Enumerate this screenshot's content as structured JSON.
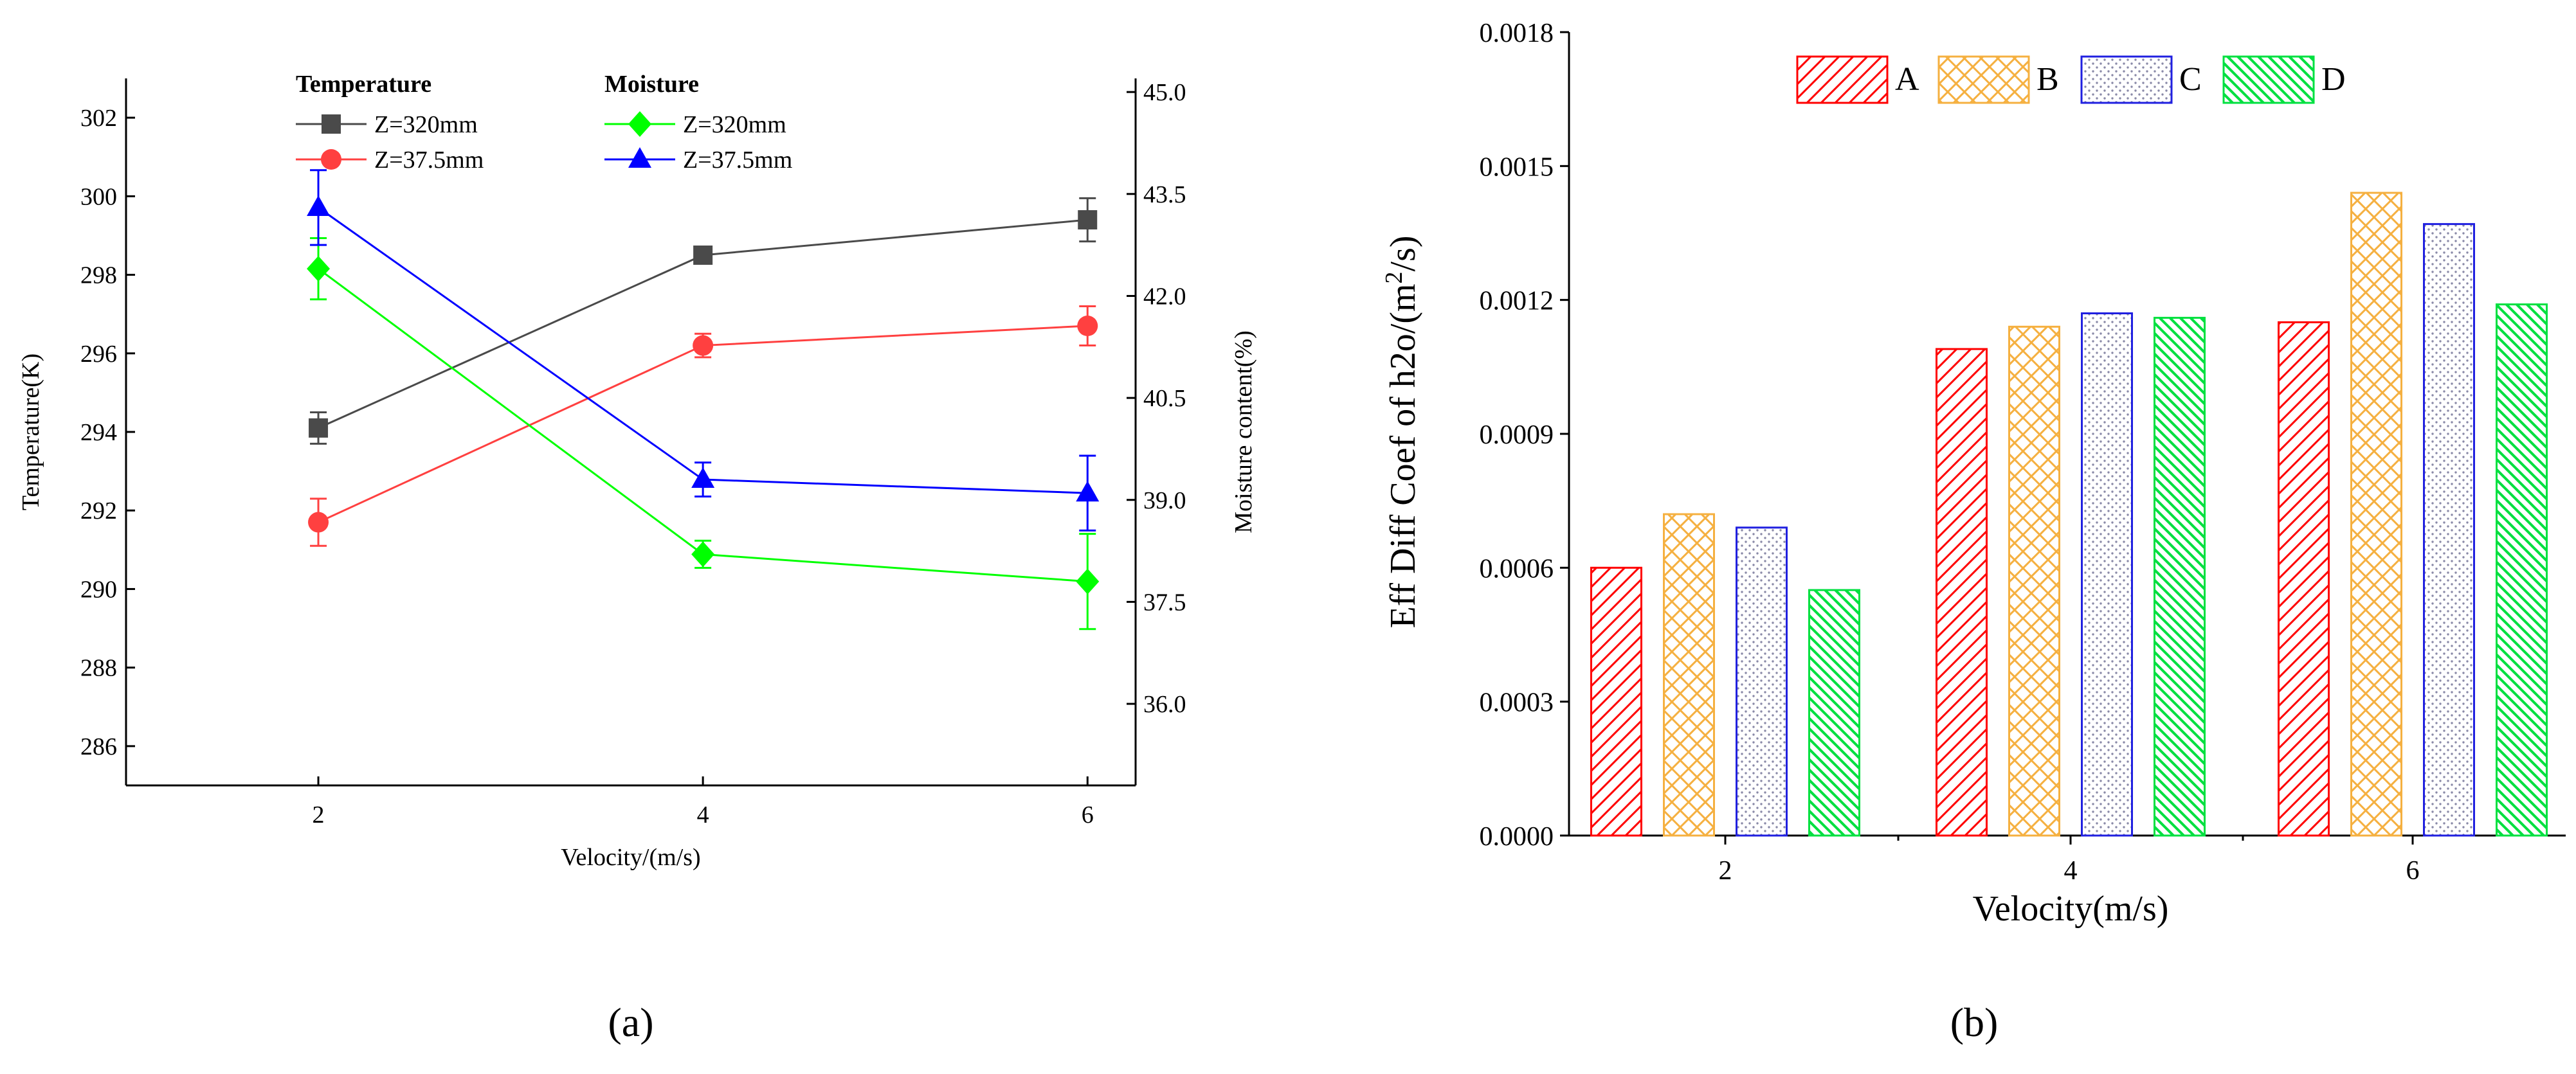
{
  "colors": {
    "black": "#000000",
    "gray_series": "#4a4a4a",
    "red_series": "#ff4040",
    "green_series": "#00ff00",
    "blue_series": "#0000ff",
    "bar_A": "#ff0000",
    "bar_B": "#f5b040",
    "bar_C": "#2020e0",
    "bar_D": "#00e040"
  },
  "chart_data": [
    {
      "id": "a",
      "type": "line",
      "panel_label": "(a)",
      "xlabel": "Velocity/(m/s)",
      "ylabel_left": "Temperature(K)",
      "ylabel_right": "Moisture content(%)",
      "x": [
        2,
        4,
        6
      ],
      "xticks": [
        "2",
        "4",
        "6"
      ],
      "xlim": [
        1,
        6.25
      ],
      "ylim_left": [
        285,
        303
      ],
      "yticks_left": [
        "286",
        "288",
        "290",
        "292",
        "294",
        "296",
        "298",
        "300",
        "302"
      ],
      "ylim_right": [
        34.8,
        45.2
      ],
      "yticks_right": [
        "36.0",
        "37.5",
        "39.0",
        "40.5",
        "42.0",
        "43.5",
        "45.0"
      ],
      "legend_groups": [
        "Temperature",
        "Moisture"
      ],
      "series": [
        {
          "name": "Z=320mm",
          "group": "Temperature",
          "axis": "left",
          "marker": "square",
          "color": "#4a4a4a",
          "values": [
            294.1,
            298.5,
            299.4
          ],
          "errors": [
            0.4,
            0.2,
            0.55
          ]
        },
        {
          "name": "Z=37.5mm",
          "group": "Temperature",
          "axis": "left",
          "marker": "circle",
          "color": "#ff4040",
          "values": [
            291.7,
            296.2,
            296.7
          ],
          "errors": [
            0.6,
            0.3,
            0.5
          ]
        },
        {
          "name": "Z=320mm",
          "group": "Moisture",
          "axis": "right",
          "marker": "diamond",
          "color": "#00ff00",
          "values": [
            42.4,
            38.2,
            37.8
          ],
          "errors": [
            0.45,
            0.2,
            0.7
          ]
        },
        {
          "name": "Z=37.5mm",
          "group": "Moisture",
          "axis": "right",
          "marker": "triangle",
          "color": "#0000ff",
          "values": [
            43.3,
            39.3,
            39.1
          ],
          "errors": [
            0.55,
            0.25,
            0.55
          ]
        }
      ]
    },
    {
      "id": "b",
      "type": "bar",
      "panel_label": "(b)",
      "xlabel": "Velocity(m/s)",
      "ylabel": "Eff Diff Coef of h2o/(m",
      "ylabel_sup": "2",
      "ylabel_end": "/s)",
      "categories": [
        "2",
        "4",
        "6"
      ],
      "ylim": [
        0,
        0.0018
      ],
      "yticks": [
        "0.0000",
        "0.0003",
        "0.0006",
        "0.0009",
        "0.0012",
        "0.0015",
        "0.0018"
      ],
      "series": [
        {
          "name": "A",
          "color": "#ff0000",
          "pattern": "diag-right",
          "values": [
            0.0006,
            0.00109,
            0.00115
          ]
        },
        {
          "name": "B",
          "color": "#f5b040",
          "pattern": "crosshatch",
          "values": [
            0.00072,
            0.00114,
            0.00144
          ]
        },
        {
          "name": "C",
          "color": "#2020e0",
          "pattern": "dots",
          "values": [
            0.00069,
            0.00117,
            0.00137
          ]
        },
        {
          "name": "D",
          "color": "#00e040",
          "pattern": "diag-left",
          "values": [
            0.00055,
            0.00116,
            0.00119
          ]
        }
      ]
    }
  ]
}
